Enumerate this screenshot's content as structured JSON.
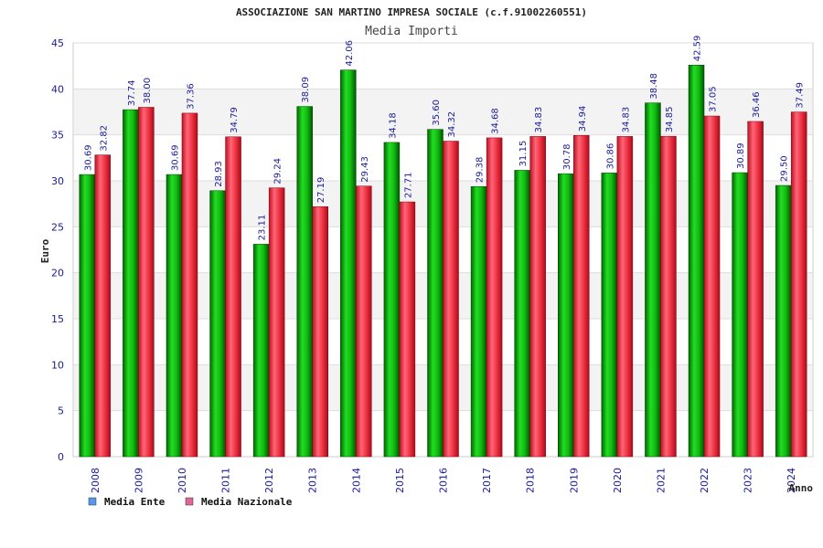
{
  "chart_data": {
    "type": "bar",
    "title": "ASSOCIAZIONE SAN MARTINO IMPRESA SOCIALE (c.f.91002260551)",
    "subtitle": "Media Importi",
    "xlabel": "Anno",
    "ylabel": "Euro",
    "ylim": [
      0,
      45
    ],
    "yticks": [
      0,
      5,
      10,
      15,
      20,
      25,
      30,
      35,
      40,
      45
    ],
    "grid": true,
    "legend_position": "bottom-left",
    "categories": [
      "2008",
      "2009",
      "2010",
      "2011",
      "2012",
      "2013",
      "2014",
      "2015",
      "2016",
      "2017",
      "2018",
      "2019",
      "2020",
      "2021",
      "2022",
      "2023",
      "2024"
    ],
    "series": [
      {
        "name": "Media Ente",
        "color": "#00bb00",
        "legend_color": "#5599ee",
        "values": [
          30.69,
          37.74,
          30.69,
          28.93,
          23.11,
          38.09,
          42.06,
          34.18,
          35.6,
          29.38,
          31.15,
          30.78,
          30.86,
          38.48,
          42.59,
          30.89,
          29.5
        ],
        "labels": [
          "30.69",
          "37.74",
          "30.69",
          "28.93",
          "23.11",
          "38.09",
          "42.06",
          "34.18",
          "35.60",
          "29.38",
          "31.15",
          "30.78",
          "30.86",
          "38.48",
          "42.59",
          "30.89",
          "29.50"
        ]
      },
      {
        "name": "Media Nazionale",
        "color": "#ee3344",
        "legend_color": "#dd6699",
        "values": [
          32.82,
          38.0,
          37.36,
          34.79,
          29.24,
          27.19,
          29.43,
          27.71,
          34.32,
          34.68,
          34.83,
          34.94,
          34.83,
          34.85,
          37.05,
          36.46,
          37.49
        ],
        "labels": [
          "32.82",
          "38.00",
          "37.36",
          "34.79",
          "29.24",
          "27.19",
          "29.43",
          "27.71",
          "34.32",
          "34.68",
          "34.83",
          "34.94",
          "34.83",
          "34.85",
          "37.05",
          "36.46",
          "37.49"
        ]
      }
    ]
  }
}
